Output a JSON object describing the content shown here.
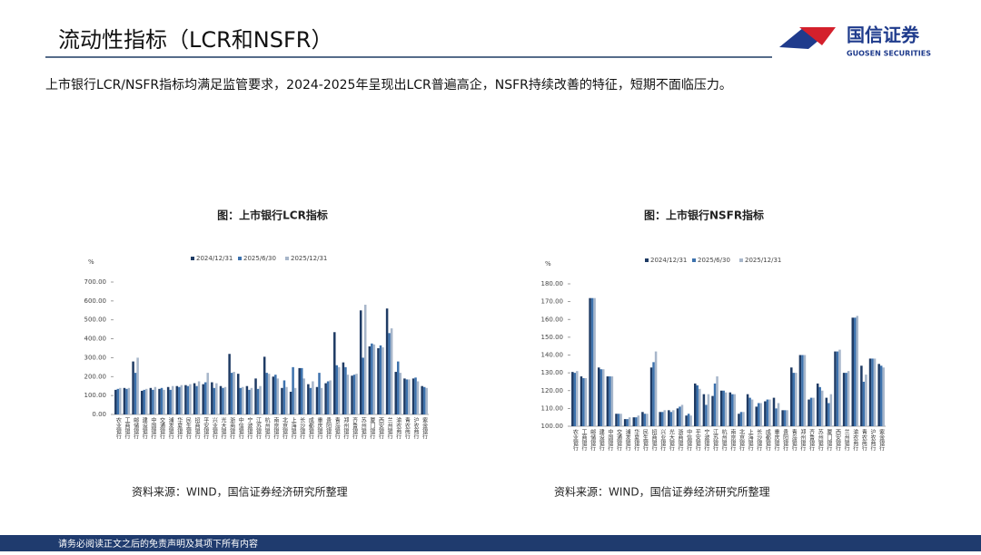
{
  "header": {
    "title": "流动性指标（LCR和NSFR）",
    "logo_name": "国信证券",
    "logo_english": "GUOSEN SECURITIES"
  },
  "subtitle": "上市银行LCR/NSFR指标均满足监管要求，2024-2025年呈现出LCR普遍高企，NSFR持续改善的特征，短期不面临压力。",
  "footer": "请务必阅读正文之后的免责声明及其项下所有内容",
  "chart_data": [
    {
      "type": "bar",
      "title": "图：上市银行LCR指标",
      "y_label": "%",
      "source": "资料来源：WIND，国信证券经济研究所整理",
      "legend": "top",
      "categories": [
        "农业银行",
        "工商银行",
        "邮储银行",
        "建设银行",
        "中国银行",
        "交通银行",
        "浦发银行",
        "华夏银行",
        "民生银行",
        "招商银行",
        "平安银行",
        "兴业银行",
        "光大银行",
        "浙商银行",
        "中信银行",
        "宁波银行",
        "江苏银行",
        "杭州银行",
        "南京银行",
        "北京银行",
        "上海银行",
        "长沙银行",
        "成都银行",
        "重庆银行",
        "贵阳银行",
        "青岛银行",
        "郑州银行",
        "齐鲁银行",
        "苏州银行",
        "厦门银行",
        "西安银行",
        "兰州银行",
        "渝农商行",
        "青农商行",
        "沪农商行",
        "紫金银行"
      ],
      "series": [
        {
          "name": "2024/12/31",
          "color": "#1f3b64",
          "values": [
            130,
            140,
            280,
            125,
            140,
            135,
            145,
            150,
            155,
            165,
            160,
            170,
            150,
            320,
            215,
            150,
            190,
            305,
            200,
            140,
            120,
            245,
            160,
            145,
            165,
            435,
            275,
            205,
            550,
            360,
            350,
            560,
            225,
            190,
            190,
            150
          ]
        },
        {
          "name": "2025/6/30",
          "color": "#3d72ad",
          "values": [
            135,
            135,
            220,
            130,
            130,
            140,
            130,
            145,
            150,
            150,
            170,
            140,
            140,
            220,
            140,
            130,
            135,
            220,
            210,
            180,
            250,
            245,
            140,
            220,
            175,
            260,
            250,
            210,
            300,
            375,
            365,
            430,
            280,
            185,
            195,
            145
          ]
        },
        {
          "name": "2025/12/31",
          "color": "#a7b6ca",
          "values": [
            140,
            140,
            300,
            135,
            145,
            130,
            150,
            155,
            160,
            175,
            220,
            165,
            145,
            225,
            145,
            140,
            150,
            215,
            190,
            145,
            140,
            190,
            175,
            140,
            180,
            250,
            210,
            215,
            580,
            370,
            355,
            455,
            220,
            185,
            175,
            140
          ]
        }
      ],
      "ylim": [
        0,
        700
      ],
      "yticks": [
        {
          "value": 0,
          "label": "0.00"
        },
        {
          "value": 100,
          "label": "100.00"
        },
        {
          "value": 200,
          "label": "200.00"
        },
        {
          "value": 300,
          "label": "300.00"
        },
        {
          "value": 400,
          "label": "400.00"
        },
        {
          "value": 500,
          "label": "500.00"
        },
        {
          "value": 600,
          "label": "600.00"
        },
        {
          "value": 700,
          "label": "700.00"
        }
      ]
    },
    {
      "type": "bar",
      "title": "图：上市银行NSFR指标",
      "y_label": "%",
      "source": "资料来源：WIND，国信证券经济研究所整理",
      "legend": "top",
      "categories": [
        "农业银行",
        "工商银行",
        "邮储银行",
        "建设银行",
        "中国银行",
        "交通银行",
        "浦发银行",
        "华夏银行",
        "民生银行",
        "招商银行",
        "兴业银行",
        "光大银行",
        "浙商银行",
        "中信银行",
        "平安银行",
        "宁波银行",
        "江苏银行",
        "杭州银行",
        "南京银行",
        "北京银行",
        "上海银行",
        "长沙银行",
        "成都银行",
        "重庆银行",
        "贵阳银行",
        "青岛银行",
        "郑州银行",
        "齐鲁银行",
        "苏州银行",
        "厦门银行",
        "西安银行",
        "兰州银行",
        "渝农商行",
        "青农商行",
        "沪农商行",
        "紫金银行"
      ],
      "series": [
        {
          "name": "2024/12/31",
          "color": "#1f3b64",
          "values": [
            130.5,
            128,
            172,
            133,
            128,
            107,
            104,
            105,
            108,
            133,
            108,
            109,
            110,
            106,
            124,
            118,
            117,
            120,
            119,
            107,
            118,
            111,
            114,
            116,
            109,
            133,
            140,
            115,
            124,
            116,
            142,
            130,
            161,
            134,
            138,
            135
          ]
        },
        {
          "name": "2025/6/30",
          "color": "#3d72ad",
          "values": [
            130,
            127,
            172,
            132,
            128,
            107,
            104,
            105,
            107,
            136,
            108,
            108,
            111,
            107,
            123,
            112,
            124,
            120,
            118,
            108,
            116,
            113,
            115,
            110,
            109,
            130,
            140,
            116,
            122,
            113,
            142,
            130,
            161,
            125,
            138,
            134
          ]
        },
        {
          "name": "2025/12/31",
          "color": "#a7b6ca",
          "values": [
            131,
            127,
            172,
            132,
            128,
            107,
            105,
            106,
            107,
            142,
            109,
            109,
            112,
            106,
            121,
            118,
            128,
            119,
            118,
            108,
            115,
            113,
            115,
            113,
            109,
            130,
            140,
            116,
            120,
            118,
            143,
            131,
            162,
            129,
            138,
            133
          ]
        }
      ],
      "ylim": [
        100,
        180
      ],
      "yticks": [
        {
          "value": 100,
          "label": "100.00"
        },
        {
          "value": 110,
          "label": "110.00"
        },
        {
          "value": 120,
          "label": "120.00"
        },
        {
          "value": 130,
          "label": "130.00"
        },
        {
          "value": 140,
          "label": "140.00"
        },
        {
          "value": 150,
          "label": "150.00"
        },
        {
          "value": 160,
          "label": "160.00"
        },
        {
          "value": 170,
          "label": "170.00"
        },
        {
          "value": 180,
          "label": "180.00"
        }
      ]
    }
  ]
}
